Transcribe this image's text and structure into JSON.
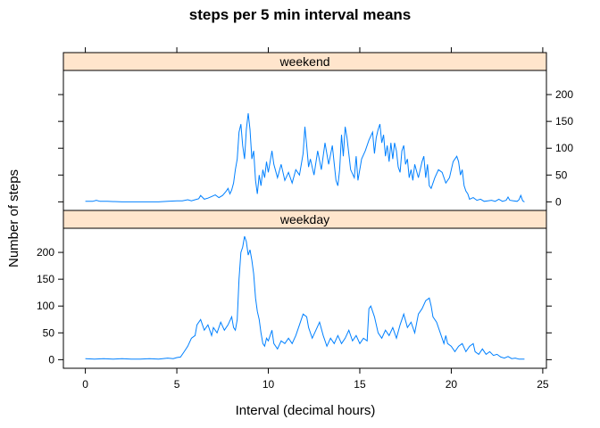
{
  "colors": {
    "line": "#0080ff",
    "strip": "#ffe5cc",
    "axis": "#000000"
  },
  "chart_data": {
    "type": "line",
    "title": "steps per 5 min interval means",
    "xlabel": "Interval (decimal hours)",
    "ylabel": "Number of steps",
    "xlim": [
      -1.2,
      25.2
    ],
    "ylim": [
      -16,
      245
    ],
    "xticks": [
      0,
      5,
      10,
      15,
      20,
      25
    ],
    "yticks": [
      0,
      50,
      100,
      150,
      200
    ],
    "grid": false,
    "panels": [
      {
        "name": "weekend",
        "points": [
          [
            0,
            1
          ],
          [
            0.4,
            1
          ],
          [
            0.6,
            3
          ],
          [
            0.8,
            1
          ],
          [
            1.2,
            1
          ],
          [
            2,
            0
          ],
          [
            3,
            0
          ],
          [
            4,
            0
          ],
          [
            4.5,
            1
          ],
          [
            5,
            2
          ],
          [
            5.3,
            2
          ],
          [
            5.6,
            4
          ],
          [
            5.8,
            2
          ],
          [
            6,
            4
          ],
          [
            6.2,
            6
          ],
          [
            6.3,
            12
          ],
          [
            6.5,
            5
          ],
          [
            6.7,
            7
          ],
          [
            6.9,
            10
          ],
          [
            7.1,
            13
          ],
          [
            7.3,
            8
          ],
          [
            7.5,
            12
          ],
          [
            7.7,
            20
          ],
          [
            7.8,
            25
          ],
          [
            7.9,
            15
          ],
          [
            8,
            22
          ],
          [
            8.1,
            35
          ],
          [
            8.2,
            60
          ],
          [
            8.3,
            80
          ],
          [
            8.4,
            130
          ],
          [
            8.5,
            145
          ],
          [
            8.6,
            105
          ],
          [
            8.7,
            80
          ],
          [
            8.8,
            135
          ],
          [
            8.9,
            165
          ],
          [
            9.0,
            135
          ],
          [
            9.1,
            80
          ],
          [
            9.2,
            95
          ],
          [
            9.3,
            40
          ],
          [
            9.4,
            15
          ],
          [
            9.5,
            50
          ],
          [
            9.6,
            30
          ],
          [
            9.7,
            60
          ],
          [
            9.8,
            45
          ],
          [
            9.9,
            75
          ],
          [
            10.0,
            55
          ],
          [
            10.2,
            95
          ],
          [
            10.3,
            70
          ],
          [
            10.5,
            45
          ],
          [
            10.7,
            70
          ],
          [
            10.9,
            40
          ],
          [
            11.1,
            55
          ],
          [
            11.3,
            35
          ],
          [
            11.5,
            60
          ],
          [
            11.7,
            50
          ],
          [
            11.9,
            90
          ],
          [
            12.0,
            140
          ],
          [
            12.1,
            105
          ],
          [
            12.2,
            65
          ],
          [
            12.3,
            80
          ],
          [
            12.5,
            50
          ],
          [
            12.7,
            95
          ],
          [
            12.9,
            60
          ],
          [
            13.1,
            110
          ],
          [
            13.3,
            70
          ],
          [
            13.5,
            105
          ],
          [
            13.7,
            40
          ],
          [
            13.8,
            30
          ],
          [
            13.9,
            60
          ],
          [
            14.0,
            125
          ],
          [
            14.1,
            85
          ],
          [
            14.2,
            140
          ],
          [
            14.3,
            120
          ],
          [
            14.5,
            60
          ],
          [
            14.7,
            45
          ],
          [
            14.8,
            85
          ],
          [
            14.9,
            40
          ],
          [
            15.1,
            80
          ],
          [
            15.3,
            95
          ],
          [
            15.5,
            115
          ],
          [
            15.7,
            130
          ],
          [
            15.8,
            90
          ],
          [
            15.9,
            120
          ],
          [
            16.0,
            135
          ],
          [
            16.1,
            145
          ],
          [
            16.2,
            110
          ],
          [
            16.3,
            125
          ],
          [
            16.4,
            85
          ],
          [
            16.5,
            105
          ],
          [
            16.6,
            75
          ],
          [
            16.7,
            110
          ],
          [
            16.8,
            80
          ],
          [
            16.9,
            110
          ],
          [
            17.0,
            95
          ],
          [
            17.1,
            65
          ],
          [
            17.2,
            55
          ],
          [
            17.3,
            95
          ],
          [
            17.4,
            105
          ],
          [
            17.5,
            70
          ],
          [
            17.6,
            80
          ],
          [
            17.7,
            45
          ],
          [
            17.8,
            60
          ],
          [
            17.9,
            40
          ],
          [
            18.0,
            70
          ],
          [
            18.2,
            45
          ],
          [
            18.4,
            75
          ],
          [
            18.5,
            85
          ],
          [
            18.6,
            45
          ],
          [
            18.7,
            70
          ],
          [
            18.8,
            30
          ],
          [
            18.9,
            25
          ],
          [
            19.1,
            45
          ],
          [
            19.3,
            60
          ],
          [
            19.5,
            55
          ],
          [
            19.7,
            35
          ],
          [
            19.9,
            45
          ],
          [
            20.1,
            75
          ],
          [
            20.3,
            85
          ],
          [
            20.4,
            75
          ],
          [
            20.5,
            50
          ],
          [
            20.6,
            60
          ],
          [
            20.7,
            30
          ],
          [
            20.8,
            20
          ],
          [
            20.9,
            15
          ],
          [
            21.0,
            5
          ],
          [
            21.2,
            8
          ],
          [
            21.4,
            3
          ],
          [
            21.6,
            5
          ],
          [
            21.8,
            1
          ],
          [
            22.0,
            2
          ],
          [
            22.2,
            3
          ],
          [
            22.4,
            1
          ],
          [
            22.6,
            5
          ],
          [
            22.8,
            1
          ],
          [
            23.0,
            3
          ],
          [
            23.1,
            9
          ],
          [
            23.2,
            3
          ],
          [
            23.4,
            2
          ],
          [
            23.6,
            1
          ],
          [
            23.7,
            4
          ],
          [
            23.8,
            12
          ],
          [
            23.9,
            2
          ],
          [
            24.0,
            0
          ]
        ]
      },
      {
        "name": "weekday",
        "points": [
          [
            0,
            2
          ],
          [
            0.5,
            1
          ],
          [
            1,
            2
          ],
          [
            1.5,
            1
          ],
          [
            2,
            2
          ],
          [
            2.5,
            1
          ],
          [
            3,
            1
          ],
          [
            3.5,
            2
          ],
          [
            4,
            1
          ],
          [
            4.5,
            3
          ],
          [
            4.8,
            2
          ],
          [
            5,
            4
          ],
          [
            5.2,
            5
          ],
          [
            5.4,
            15
          ],
          [
            5.6,
            25
          ],
          [
            5.8,
            40
          ],
          [
            6.0,
            45
          ],
          [
            6.1,
            65
          ],
          [
            6.3,
            75
          ],
          [
            6.5,
            55
          ],
          [
            6.7,
            65
          ],
          [
            6.9,
            45
          ],
          [
            7.0,
            60
          ],
          [
            7.2,
            50
          ],
          [
            7.4,
            70
          ],
          [
            7.6,
            55
          ],
          [
            7.8,
            65
          ],
          [
            8.0,
            80
          ],
          [
            8.1,
            60
          ],
          [
            8.2,
            55
          ],
          [
            8.3,
            75
          ],
          [
            8.4,
            150
          ],
          [
            8.5,
            200
          ],
          [
            8.6,
            210
          ],
          [
            8.7,
            230
          ],
          [
            8.8,
            220
          ],
          [
            8.9,
            195
          ],
          [
            9.0,
            205
          ],
          [
            9.1,
            185
          ],
          [
            9.2,
            160
          ],
          [
            9.3,
            115
          ],
          [
            9.4,
            90
          ],
          [
            9.5,
            75
          ],
          [
            9.6,
            50
          ],
          [
            9.7,
            30
          ],
          [
            9.8,
            25
          ],
          [
            9.9,
            40
          ],
          [
            10.0,
            35
          ],
          [
            10.2,
            55
          ],
          [
            10.3,
            30
          ],
          [
            10.5,
            20
          ],
          [
            10.7,
            35
          ],
          [
            10.9,
            30
          ],
          [
            11.1,
            40
          ],
          [
            11.3,
            30
          ],
          [
            11.5,
            45
          ],
          [
            11.7,
            65
          ],
          [
            11.9,
            85
          ],
          [
            12.1,
            80
          ],
          [
            12.2,
            60
          ],
          [
            12.4,
            40
          ],
          [
            12.6,
            55
          ],
          [
            12.8,
            70
          ],
          [
            13.0,
            45
          ],
          [
            13.2,
            25
          ],
          [
            13.4,
            40
          ],
          [
            13.6,
            30
          ],
          [
            13.8,
            45
          ],
          [
            14.0,
            30
          ],
          [
            14.2,
            40
          ],
          [
            14.4,
            55
          ],
          [
            14.6,
            35
          ],
          [
            14.8,
            45
          ],
          [
            15.0,
            30
          ],
          [
            15.2,
            40
          ],
          [
            15.4,
            35
          ],
          [
            15.5,
            95
          ],
          [
            15.6,
            100
          ],
          [
            15.8,
            80
          ],
          [
            16.0,
            50
          ],
          [
            16.2,
            40
          ],
          [
            16.4,
            55
          ],
          [
            16.6,
            45
          ],
          [
            16.8,
            60
          ],
          [
            17.0,
            40
          ],
          [
            17.2,
            65
          ],
          [
            17.4,
            85
          ],
          [
            17.6,
            60
          ],
          [
            17.8,
            70
          ],
          [
            18.0,
            50
          ],
          [
            18.2,
            85
          ],
          [
            18.4,
            95
          ],
          [
            18.6,
            110
          ],
          [
            18.8,
            115
          ],
          [
            18.9,
            100
          ],
          [
            19.0,
            80
          ],
          [
            19.2,
            70
          ],
          [
            19.4,
            50
          ],
          [
            19.6,
            30
          ],
          [
            19.7,
            45
          ],
          [
            19.8,
            30
          ],
          [
            20.0,
            25
          ],
          [
            20.2,
            15
          ],
          [
            20.4,
            25
          ],
          [
            20.6,
            30
          ],
          [
            20.8,
            15
          ],
          [
            21.0,
            25
          ],
          [
            21.2,
            30
          ],
          [
            21.3,
            15
          ],
          [
            21.5,
            10
          ],
          [
            21.7,
            20
          ],
          [
            21.9,
            10
          ],
          [
            22.1,
            15
          ],
          [
            22.3,
            8
          ],
          [
            22.5,
            10
          ],
          [
            22.7,
            5
          ],
          [
            22.9,
            3
          ],
          [
            23.1,
            6
          ],
          [
            23.3,
            2
          ],
          [
            23.5,
            3
          ],
          [
            23.7,
            1
          ],
          [
            24.0,
            1
          ]
        ]
      }
    ]
  }
}
